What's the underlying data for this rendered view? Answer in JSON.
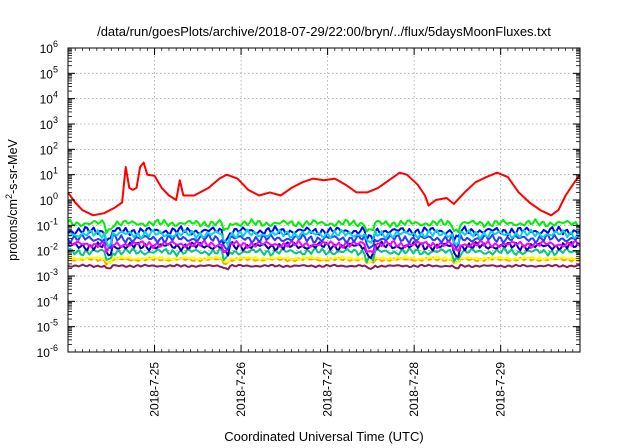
{
  "chart_data": {
    "type": "line",
    "title": "/data/run/goesPlots/archive/2018-07-29/22:00/bryn/../flux/5daysMoonFluxes.txt",
    "xlabel": "Coordinated Universal Time (UTC)",
    "ylabel": "protons/cm²-s-sr-MeV",
    "ylabel_parts": {
      "pre": "protons/cm",
      "sup": "2",
      "post": "-s-sr-MeV"
    },
    "y_scale": "log",
    "ylim": [
      1e-06,
      1000000.0
    ],
    "y_ticks": [
      {
        "base": "10",
        "exp": "-6"
      },
      {
        "base": "10",
        "exp": "-5"
      },
      {
        "base": "10",
        "exp": "-4"
      },
      {
        "base": "10",
        "exp": "-3"
      },
      {
        "base": "10",
        "exp": "-2"
      },
      {
        "base": "10",
        "exp": "-1"
      },
      {
        "base": "10",
        "exp": "0"
      },
      {
        "base": "10",
        "exp": "1"
      },
      {
        "base": "10",
        "exp": "2"
      },
      {
        "base": "10",
        "exp": "3"
      },
      {
        "base": "10",
        "exp": "4"
      },
      {
        "base": "10",
        "exp": "5"
      },
      {
        "base": "10",
        "exp": "6"
      }
    ],
    "xlim": [
      "2018-07-24 00:00",
      "2018-07-29 22:00"
    ],
    "x_ticks": [
      "2018-7-25",
      "2018-7-26",
      "2018-7-27",
      "2018-7-28",
      "2018-7-29"
    ],
    "grid": true,
    "series": [
      {
        "color": "#ff0000",
        "points": [
          [
            "2018-07-24 00:00",
            2.0
          ],
          [
            "2018-07-24 02:00",
            0.8
          ],
          [
            "2018-07-24 04:00",
            0.4
          ],
          [
            "2018-07-24 07:00",
            0.25
          ],
          [
            "2018-07-24 10:00",
            0.3
          ],
          [
            "2018-07-24 13:00",
            0.5
          ],
          [
            "2018-07-24 15:00",
            0.8
          ],
          [
            "2018-07-24 16:00",
            20
          ],
          [
            "2018-07-24 17:00",
            3.0
          ],
          [
            "2018-07-24 18:00",
            2.5
          ],
          [
            "2018-07-24 19:00",
            3.0
          ],
          [
            "2018-07-24 20:00",
            20
          ],
          [
            "2018-07-24 21:00",
            30
          ],
          [
            "2018-07-24 22:00",
            10
          ],
          [
            "2018-07-25 00:00",
            9.0
          ],
          [
            "2018-07-25 02:00",
            3.0
          ],
          [
            "2018-07-25 04:00",
            1.5
          ],
          [
            "2018-07-25 06:00",
            1.0
          ],
          [
            "2018-07-25 07:00",
            6.0
          ],
          [
            "2018-07-25 08:00",
            1.5
          ],
          [
            "2018-07-25 11:00",
            1.5
          ],
          [
            "2018-07-25 15:00",
            3.0
          ],
          [
            "2018-07-25 18:00",
            7.0
          ],
          [
            "2018-07-25 20:00",
            10
          ],
          [
            "2018-07-25 23:00",
            7.0
          ],
          [
            "2018-07-26 02:00",
            2.5
          ],
          [
            "2018-07-26 05:00",
            1.5
          ],
          [
            "2018-07-26 08:00",
            2.0
          ],
          [
            "2018-07-26 11:00",
            1.5
          ],
          [
            "2018-07-26 14:00",
            3.0
          ],
          [
            "2018-07-26 17:00",
            5.0
          ],
          [
            "2018-07-26 20:00",
            7.0
          ],
          [
            "2018-07-26 23:00",
            6.0
          ],
          [
            "2018-07-27 02:00",
            7.0
          ],
          [
            "2018-07-27 05:00",
            4.0
          ],
          [
            "2018-07-27 08:00",
            2.0
          ],
          [
            "2018-07-27 11:00",
            2.0
          ],
          [
            "2018-07-27 14:00",
            3.0
          ],
          [
            "2018-07-27 17:00",
            6.0
          ],
          [
            "2018-07-27 20:00",
            12
          ],
          [
            "2018-07-27 22:00",
            10
          ],
          [
            "2018-07-28 01:00",
            4.0
          ],
          [
            "2018-07-28 03:00",
            1.5
          ],
          [
            "2018-07-28 04:00",
            0.6
          ],
          [
            "2018-07-28 06:00",
            1.0
          ],
          [
            "2018-07-28 09:00",
            1.2
          ],
          [
            "2018-07-28 11:00",
            0.7
          ],
          [
            "2018-07-28 14:00",
            2.0
          ],
          [
            "2018-07-28 17:00",
            5.0
          ],
          [
            "2018-07-28 20:00",
            8.0
          ],
          [
            "2018-07-28 23:00",
            12
          ],
          [
            "2018-07-29 02:00",
            8.0
          ],
          [
            "2018-07-29 05:00",
            2.0
          ],
          [
            "2018-07-29 08:00",
            0.8
          ],
          [
            "2018-07-29 11:00",
            0.4
          ],
          [
            "2018-07-29 14:00",
            0.25
          ],
          [
            "2018-07-29 16:00",
            0.4
          ],
          [
            "2018-07-29 18:00",
            1.5
          ],
          [
            "2018-07-29 20:00",
            4.0
          ],
          [
            "2018-07-29 22:00",
            10
          ]
        ]
      },
      {
        "color": "#00ee00",
        "base": 0.12,
        "amp": 0.3
      },
      {
        "color": "#00d8d8",
        "base": 0.045,
        "amp": 0.35
      },
      {
        "color": "#0000ff",
        "base": 0.06,
        "amp": 0.35
      },
      {
        "color": "#2a3cff",
        "base": 0.03,
        "amp": 0.35
      },
      {
        "color": "#ff00ff",
        "base": 0.018,
        "amp": 0.3
      },
      {
        "color": "#0000a0",
        "base": 0.015,
        "amp": 0.35
      },
      {
        "color": "#00c880",
        "base": 0.009,
        "amp": 0.3
      },
      {
        "color": "#ffff00",
        "base": 0.005,
        "amp": 0.15
      },
      {
        "color": "#ffa500",
        "base": 0.0045,
        "amp": 0.15
      },
      {
        "color": "#8b1a5a",
        "base": 0.0025,
        "amp": 0.1
      }
    ]
  }
}
